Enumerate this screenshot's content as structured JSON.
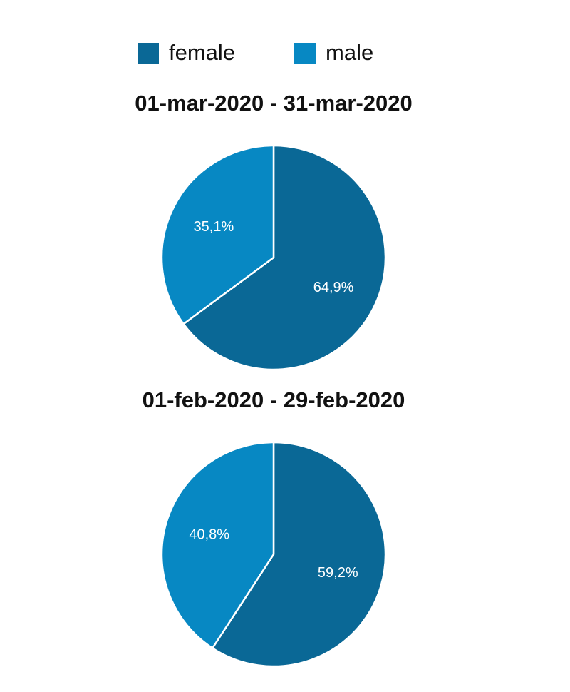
{
  "chart_data": [
    {
      "type": "pie",
      "title": "01-mar-2020 - 31-mar-2020",
      "categories": [
        "female",
        "male"
      ],
      "values": [
        64.9,
        35.1
      ],
      "value_labels": [
        "64,9%",
        "35,1%"
      ],
      "colors": [
        "#0a6896",
        "#0788c3"
      ]
    },
    {
      "type": "pie",
      "title": "01-feb-2020 - 29-feb-2020",
      "categories": [
        "female",
        "male"
      ],
      "values": [
        59.2,
        40.8
      ],
      "value_labels": [
        "59,2%",
        "40,8%"
      ],
      "colors": [
        "#0a6896",
        "#0788c3"
      ]
    }
  ]
}
